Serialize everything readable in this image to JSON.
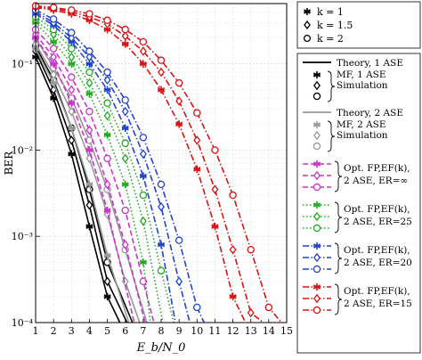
{
  "chart_data": {
    "type": "line",
    "xlabel": "E_b/N_0",
    "ylabel": "BER",
    "xlim": [
      1,
      15
    ],
    "ylim": [
      0.0001,
      0.5
    ],
    "y_scale": "log",
    "grid": true,
    "legend_placement": "outside-right",
    "x_ticks": [
      1,
      2,
      3,
      4,
      5,
      6,
      7,
      8,
      9,
      10,
      11,
      12,
      13,
      14,
      15
    ],
    "y_ticks": [
      {
        "value": 0.1,
        "label": "10⁻¹"
      },
      {
        "value": 0.01,
        "label": "10⁻²"
      },
      {
        "value": 0.001,
        "label": "10⁻³"
      },
      {
        "value": 0.0001,
        "label": "10⁻⁴"
      }
    ],
    "k_legend": [
      {
        "marker": "asterisk",
        "label": "k = 1"
      },
      {
        "marker": "diamond",
        "label": "k = 1.5"
      },
      {
        "marker": "circle",
        "label": "k = 2"
      }
    ],
    "legend_groups": [
      {
        "id": "theory1",
        "color": "#000000",
        "dash": "solid",
        "title": "Theory, 1 ASE",
        "sim_label_lines": [
          "MF, 1 ASE",
          "Simulation"
        ]
      },
      {
        "id": "theory2",
        "color": "#999999",
        "dash": "solid",
        "title": "Theory, 2 ASE",
        "sim_label_lines": [
          "MF, 2 ASE",
          "Simulation"
        ]
      },
      {
        "id": "erinf",
        "color": "#cc33cc",
        "dash": "dashed",
        "label_lines": [
          "Opt. FP,EF(k),",
          "2 ASE, ER=∞"
        ]
      },
      {
        "id": "er25",
        "color": "#22aa22",
        "dash": "dotted",
        "label_lines": [
          "Opt. FP,EF(k),",
          "2 ASE, ER=25"
        ]
      },
      {
        "id": "er20",
        "color": "#2244cc",
        "dash": "dashdot",
        "label_lines": [
          "Opt. FP,EF(k),",
          "2 ASE, ER=20"
        ]
      },
      {
        "id": "er15",
        "color": "#dd1111",
        "dash": "dashdot",
        "label_lines": [
          "Opt. FP,EF(k),",
          "2 ASE, ER=15"
        ]
      }
    ],
    "series": [
      {
        "group": "theory1",
        "k": 1,
        "marker": "asterisk",
        "x": [
          1,
          2,
          3,
          4,
          5,
          5.7
        ],
        "y": [
          0.12,
          0.04,
          0.009,
          0.0013,
          0.0002,
          0.0001
        ]
      },
      {
        "group": "theory1",
        "k": 1.5,
        "marker": "diamond",
        "x": [
          1,
          2,
          3,
          4,
          5,
          6.1
        ],
        "y": [
          0.14,
          0.05,
          0.013,
          0.0023,
          0.0003,
          0.0001
        ]
      },
      {
        "group": "theory1",
        "k": 2,
        "marker": "circle",
        "x": [
          1,
          2,
          3,
          4,
          5,
          6.4
        ],
        "y": [
          0.16,
          0.065,
          0.018,
          0.0035,
          0.0005,
          0.0001
        ]
      },
      {
        "group": "theory2",
        "k": 1,
        "marker": "asterisk",
        "x": [
          1,
          2,
          3,
          4,
          5,
          6.2
        ],
        "y": [
          0.15,
          0.06,
          0.018,
          0.004,
          0.0006,
          0.0001
        ]
      },
      {
        "group": "theory2",
        "k": 1.5,
        "marker": "diamond",
        "x": [
          1,
          2,
          3,
          4,
          5,
          6,
          6.8
        ],
        "y": [
          0.17,
          0.075,
          0.028,
          0.008,
          0.0018,
          0.0003,
          0.0001
        ]
      },
      {
        "group": "theory2",
        "k": 2,
        "marker": "circle",
        "x": [
          1,
          2,
          3,
          4,
          5,
          6,
          7.2
        ],
        "y": [
          0.2,
          0.09,
          0.04,
          0.013,
          0.0035,
          0.0007,
          0.0001
        ]
      },
      {
        "group": "erinf",
        "k": 1,
        "marker": "asterisk",
        "x": [
          1,
          2,
          3,
          4,
          5,
          6.5
        ],
        "y": [
          0.2,
          0.1,
          0.035,
          0.01,
          0.002,
          0.0001
        ]
      },
      {
        "group": "erinf",
        "k": 1.5,
        "marker": "diamond",
        "x": [
          1,
          2,
          3,
          4,
          5,
          6,
          7.1
        ],
        "y": [
          0.22,
          0.12,
          0.05,
          0.017,
          0.004,
          0.0008,
          0.0001
        ]
      },
      {
        "group": "erinf",
        "k": 2,
        "marker": "circle",
        "x": [
          1,
          2,
          3,
          4,
          5,
          6,
          7,
          7.6
        ],
        "y": [
          0.25,
          0.15,
          0.07,
          0.028,
          0.008,
          0.002,
          0.0003,
          0.0001
        ]
      },
      {
        "group": "er25",
        "k": 1,
        "marker": "asterisk",
        "x": [
          1,
          2,
          3,
          4,
          5,
          6,
          7,
          7.4
        ],
        "y": [
          0.3,
          0.18,
          0.1,
          0.045,
          0.015,
          0.004,
          0.0005,
          0.0001
        ]
      },
      {
        "group": "er25",
        "k": 1.5,
        "marker": "diamond",
        "x": [
          1,
          2,
          3,
          4,
          5,
          6,
          7,
          8.1
        ],
        "y": [
          0.32,
          0.22,
          0.12,
          0.06,
          0.025,
          0.008,
          0.0015,
          0.0001
        ]
      },
      {
        "group": "er25",
        "k": 2,
        "marker": "circle",
        "x": [
          1,
          2,
          3,
          4,
          5,
          6,
          7,
          8,
          8.7
        ],
        "y": [
          0.35,
          0.25,
          0.15,
          0.08,
          0.035,
          0.012,
          0.003,
          0.0004,
          0.0001
        ]
      },
      {
        "group": "er20",
        "k": 1,
        "marker": "asterisk",
        "x": [
          1,
          2,
          3,
          4,
          5,
          6,
          7,
          8,
          8.8
        ],
        "y": [
          0.38,
          0.28,
          0.18,
          0.1,
          0.05,
          0.018,
          0.005,
          0.0008,
          0.0001
        ]
      },
      {
        "group": "er20",
        "k": 1.5,
        "marker": "diamond",
        "x": [
          1,
          2,
          3,
          4,
          5,
          6,
          7,
          8,
          9,
          9.6
        ],
        "y": [
          0.4,
          0.3,
          0.2,
          0.12,
          0.065,
          0.028,
          0.009,
          0.0022,
          0.0003,
          0.0001
        ]
      },
      {
        "group": "er20",
        "k": 2,
        "marker": "circle",
        "x": [
          1,
          2,
          3,
          4,
          5,
          6,
          7,
          8,
          9,
          10,
          10.4
        ],
        "y": [
          0.42,
          0.33,
          0.23,
          0.14,
          0.08,
          0.038,
          0.014,
          0.004,
          0.0009,
          0.00015,
          0.0001
        ]
      },
      {
        "group": "er15",
        "k": 1,
        "marker": "asterisk",
        "x": [
          1,
          2,
          3,
          4,
          5,
          6,
          7,
          8,
          9,
          10,
          11,
          12,
          12.7
        ],
        "y": [
          0.45,
          0.42,
          0.38,
          0.32,
          0.25,
          0.17,
          0.1,
          0.05,
          0.02,
          0.006,
          0.0013,
          0.0002,
          0.0001
        ]
      },
      {
        "group": "er15",
        "k": 1.5,
        "marker": "diamond",
        "x": [
          1,
          2,
          3,
          4,
          5,
          6,
          7,
          8,
          9,
          10,
          11,
          12,
          13,
          13.7
        ],
        "y": [
          0.46,
          0.44,
          0.4,
          0.35,
          0.29,
          0.21,
          0.14,
          0.08,
          0.037,
          0.013,
          0.0035,
          0.0007,
          0.00013,
          0.0001
        ]
      },
      {
        "group": "er15",
        "k": 2,
        "marker": "circle",
        "x": [
          1,
          2,
          3,
          4,
          5,
          6,
          7,
          8,
          9,
          10,
          11,
          12,
          13,
          14,
          14.7
        ],
        "y": [
          0.47,
          0.45,
          0.42,
          0.38,
          0.32,
          0.25,
          0.18,
          0.11,
          0.06,
          0.027,
          0.01,
          0.003,
          0.0007,
          0.00015,
          0.0001
        ]
      }
    ]
  }
}
